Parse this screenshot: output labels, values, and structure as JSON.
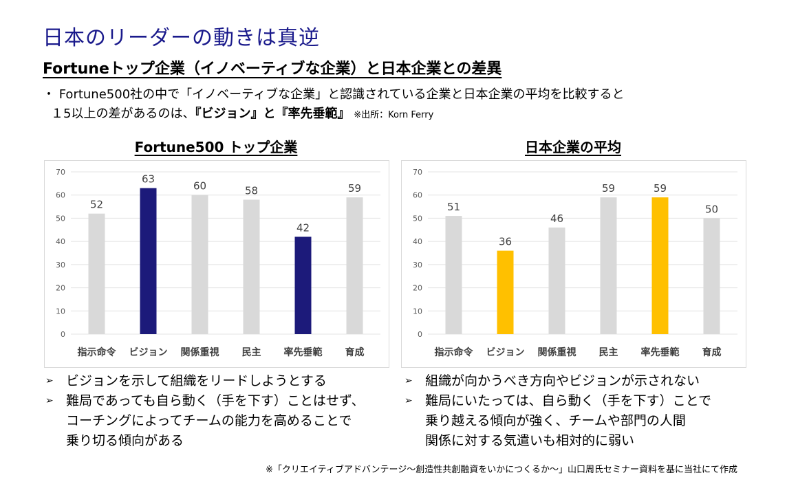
{
  "title": "日本のリーダーの動きは真逆",
  "subtitle": "Fortuneトップ企業（イノベーティブな企業）と日本企業との差異",
  "bullet": {
    "line1": "・ Fortune500社の中で「イノベーティブな企業」と認識されている企業と日本企業の平均を比較すると",
    "line2_prefix": "１5以上の差があるのは、",
    "line2_bold": "『ビジョン』と『率先垂範』",
    "source": "※出所：Korn Ferry"
  },
  "chart_data": [
    {
      "type": "bar",
      "title": "Fortune500 トップ企業",
      "categories": [
        "指示命令",
        "ビジョン",
        "関係重視",
        "民主",
        "率先垂範",
        "育成"
      ],
      "values": [
        52,
        63,
        60,
        58,
        42,
        59
      ],
      "ylim": [
        0,
        70
      ],
      "yticks": [
        0,
        10,
        20,
        30,
        40,
        50,
        60,
        70
      ],
      "grid": true,
      "colors": [
        "#d9d9d9",
        "#1c1a7a",
        "#d9d9d9",
        "#d9d9d9",
        "#1c1a7a",
        "#d9d9d9"
      ]
    },
    {
      "type": "bar",
      "title": "日本企業の平均",
      "categories": [
        "指示命令",
        "ビジョン",
        "関係重視",
        "民主",
        "率先垂範",
        "育成"
      ],
      "values": [
        51,
        36,
        46,
        59,
        59,
        50
      ],
      "ylim": [
        0,
        70
      ],
      "yticks": [
        0,
        10,
        20,
        30,
        40,
        50,
        60,
        70
      ],
      "grid": true,
      "colors": [
        "#d9d9d9",
        "#ffc000",
        "#d9d9d9",
        "#d9d9d9",
        "#ffc000",
        "#d9d9d9"
      ]
    }
  ],
  "notes_left": [
    "ビジョンを示して組織をリードしようとする",
    "難局であっても自ら動く（手を下す）ことはせず、",
    "コーチングによってチームの能力を高めることで",
    "乗り切る傾向がある"
  ],
  "notes_right": [
    "組織が向かうべき方向やビジョンが示されない",
    "難局にいたっては、自ら動く（手を下す）ことで",
    "乗り越える傾向が強く、チームや部門の人間",
    "関係に対する気遣いも相対的に弱い"
  ],
  "footer": "※「クリエイティブアドバンテージ〜創造性共創融資をいかにつくるか〜」山口周氏セミナー資料を基に当社にて作成",
  "icons": {
    "bullet": "arrow-bullet-icon"
  }
}
